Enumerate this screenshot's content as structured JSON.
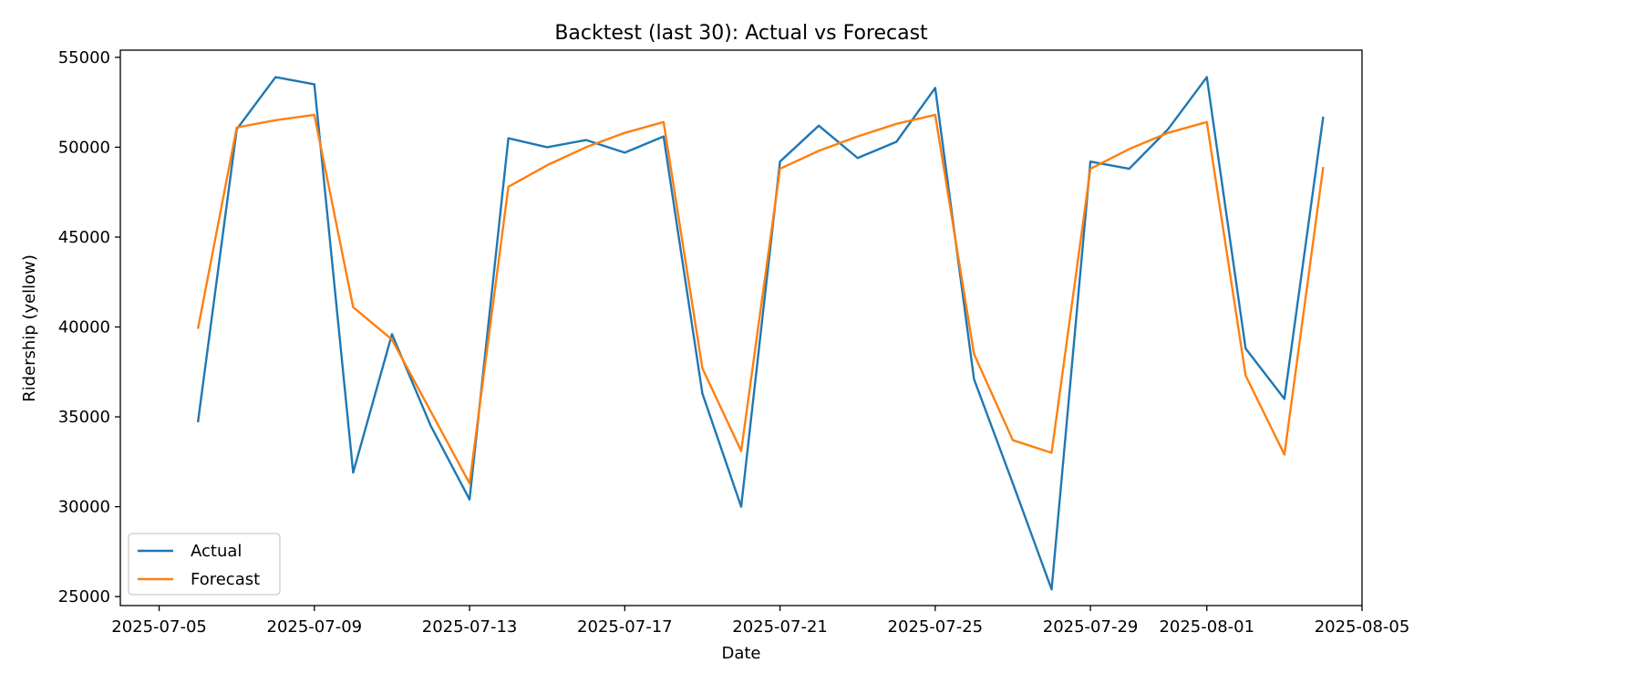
{
  "chart_data": {
    "type": "line",
    "title": "Backtest (last 30): Actual vs Forecast",
    "xlabel": "Date",
    "ylabel": "Ridership (yellow)",
    "xlim": [
      "2025-07-04",
      "2025-08-05"
    ],
    "ylim": [
      24500,
      55400
    ],
    "x_ticks": [
      "2025-07-05",
      "2025-07-09",
      "2025-07-13",
      "2025-07-17",
      "2025-07-21",
      "2025-07-25",
      "2025-07-29",
      "2025-08-01",
      "2025-08-05"
    ],
    "y_ticks": [
      25000,
      30000,
      35000,
      40000,
      45000,
      50000,
      55000
    ],
    "y_tick_labels": [
      "25000",
      "30000",
      "35000",
      "40000",
      "45000",
      "50000",
      "55000"
    ],
    "grid": false,
    "legend_position": "lower-left",
    "x": [
      "2025-07-06",
      "2025-07-07",
      "2025-07-08",
      "2025-07-09",
      "2025-07-10",
      "2025-07-11",
      "2025-07-12",
      "2025-07-13",
      "2025-07-14",
      "2025-07-15",
      "2025-07-16",
      "2025-07-17",
      "2025-07-18",
      "2025-07-19",
      "2025-07-20",
      "2025-07-21",
      "2025-07-22",
      "2025-07-23",
      "2025-07-24",
      "2025-07-25",
      "2025-07-26",
      "2025-07-27",
      "2025-07-28",
      "2025-07-29",
      "2025-07-30",
      "2025-07-31",
      "2025-08-01",
      "2025-08-02",
      "2025-08-03",
      "2025-08-04"
    ],
    "series": [
      {
        "name": "Actual",
        "color": "#1f77b4",
        "values": [
          34700,
          51000,
          53900,
          53500,
          31900,
          39600,
          34500,
          30400,
          50500,
          50000,
          50400,
          49700,
          50600,
          36300,
          30000,
          49200,
          51200,
          49400,
          50300,
          53300,
          37100,
          31300,
          25400,
          49200,
          48800,
          51000,
          53900,
          38800,
          36000,
          51700
        ]
      },
      {
        "name": "Forecast",
        "color": "#ff7f0e",
        "values": [
          39900,
          51100,
          51500,
          51800,
          41100,
          39300,
          35300,
          31300,
          47800,
          49000,
          50000,
          50800,
          51400,
          37700,
          33100,
          48800,
          49800,
          50600,
          51300,
          51800,
          38500,
          33700,
          33000,
          48800,
          49900,
          50800,
          51400,
          37300,
          32900,
          48900
        ]
      }
    ]
  }
}
